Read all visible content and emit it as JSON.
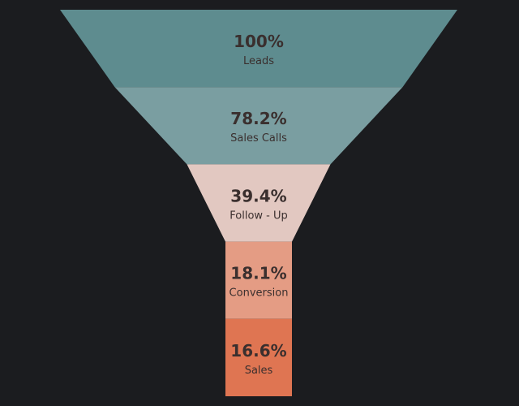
{
  "chart_data": {
    "type": "funnel",
    "title": "",
    "stages": [
      {
        "label": "Leads",
        "percent_label": "100%",
        "value": 100,
        "color": "#5e8c8f"
      },
      {
        "label": "Sales Calls",
        "percent_label": "78.2%",
        "value": 78.2,
        "color": "#7a9ea1"
      },
      {
        "label": "Follow - Up",
        "percent_label": "39.4%",
        "value": 39.4,
        "color": "#e2c8c1"
      },
      {
        "label": "Conversion",
        "percent_label": "18.1%",
        "value": 18.1,
        "color": "#e49c84"
      },
      {
        "label": "Sales",
        "percent_label": "16.6%",
        "value": 16.6,
        "color": "#df7552"
      }
    ],
    "text_color": "#3a2f2e",
    "background": "#1b1c1f"
  }
}
